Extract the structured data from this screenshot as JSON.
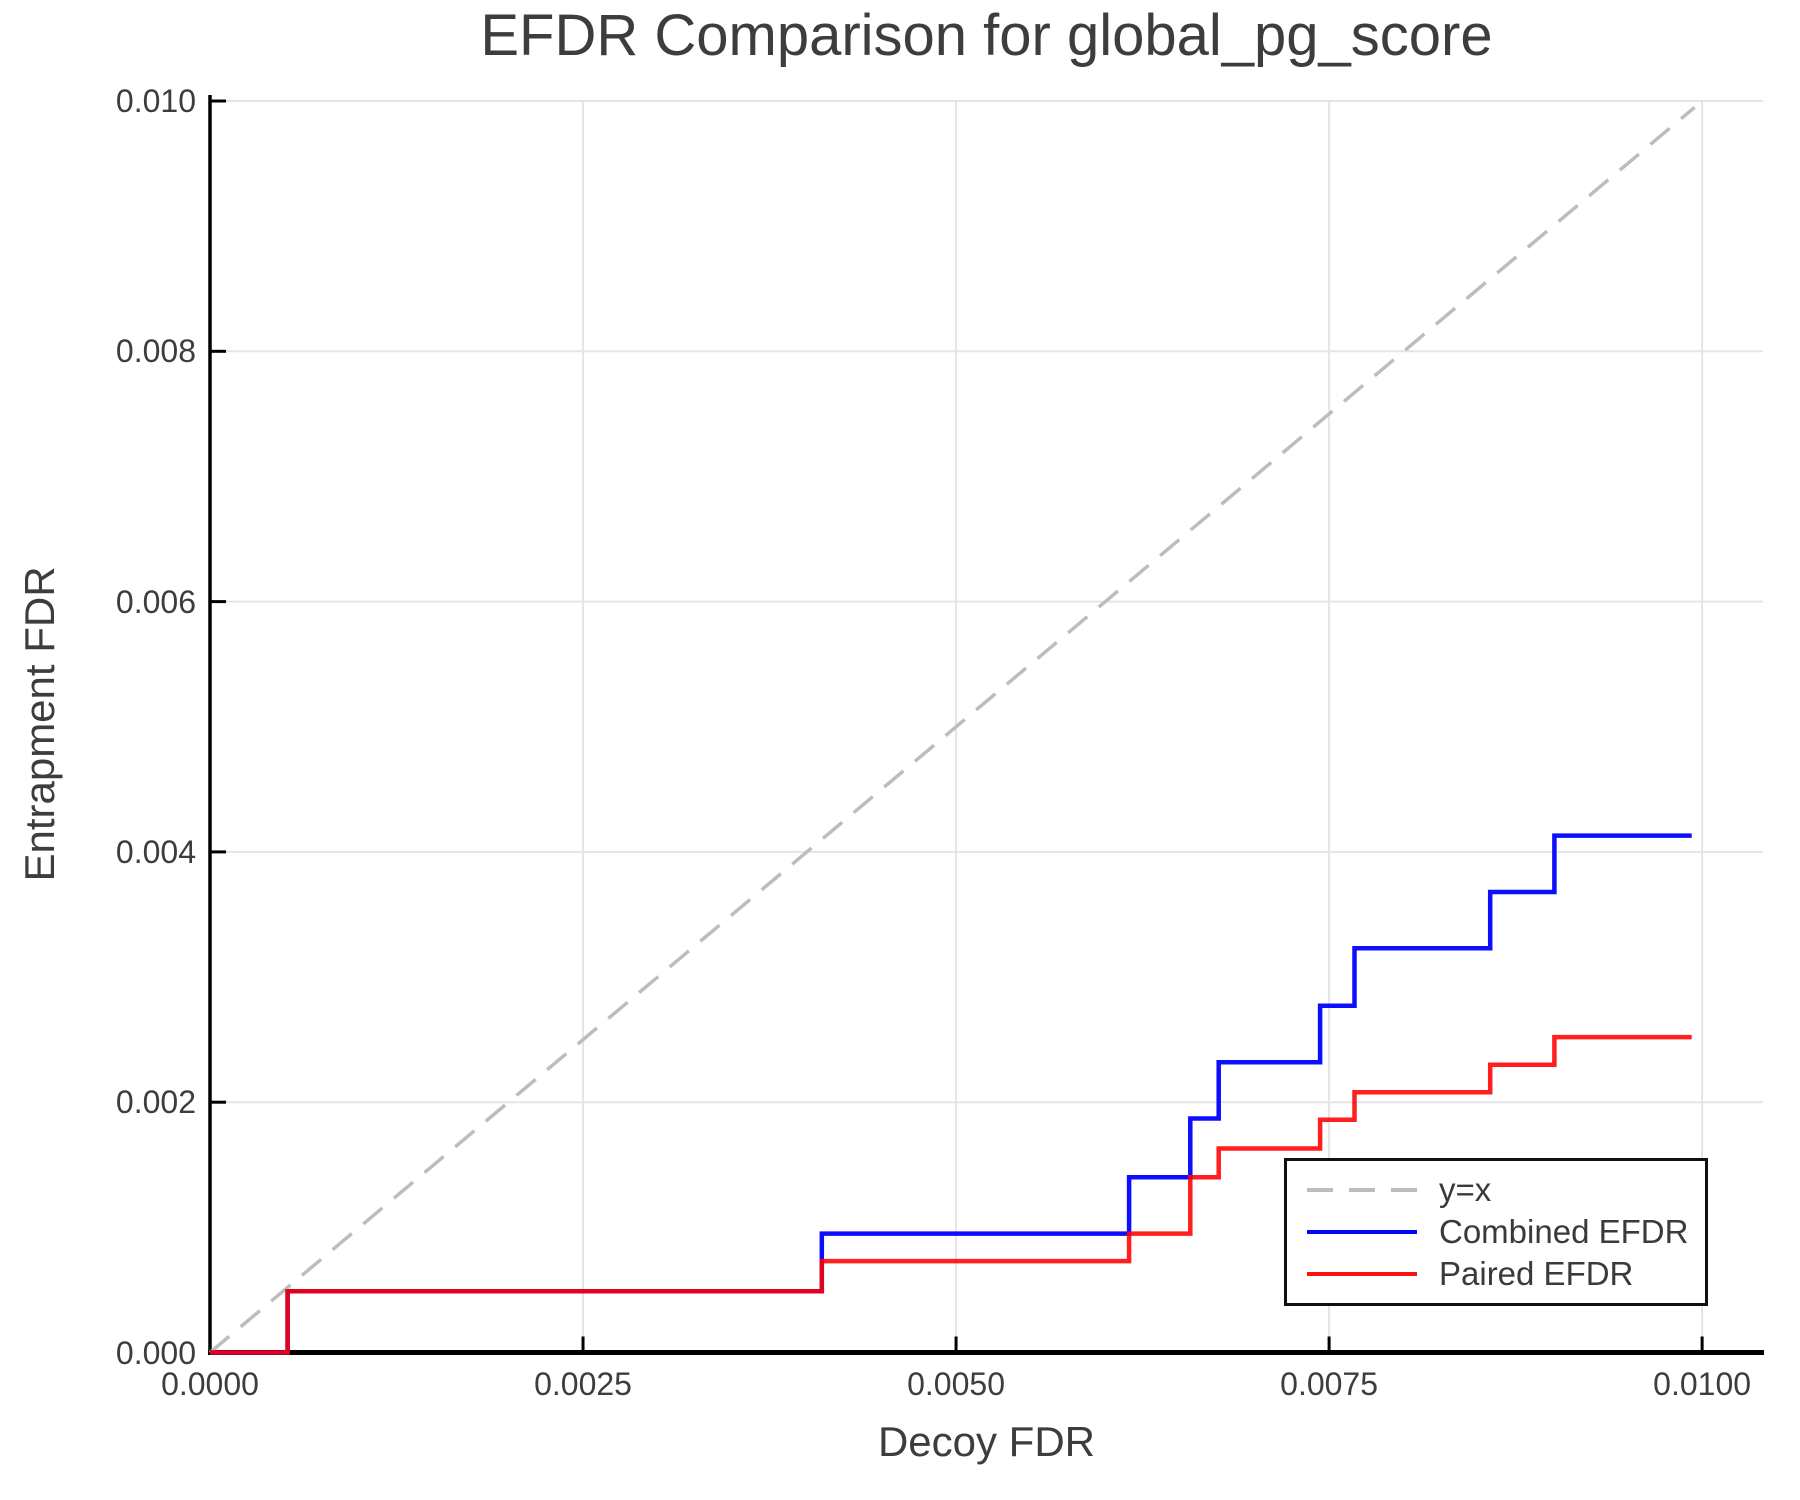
{
  "title": "EFDR Comparison for global_pg_score",
  "axes": {
    "xlabel": "Decoy FDR",
    "ylabel": "Entrapment FDR",
    "x_tick_labels": [
      "0.0000",
      "0.0025",
      "0.0050",
      "0.0075",
      "0.0100"
    ],
    "x_tick_values": [
      0,
      0.0025,
      0.005,
      0.0075,
      0.01
    ],
    "y_tick_labels": [
      "0.000",
      "0.002",
      "0.004",
      "0.006",
      "0.008",
      "0.010"
    ],
    "y_tick_values": [
      0,
      0.002,
      0.004,
      0.006,
      0.008,
      0.01
    ],
    "grid_color": "#e5e5e5",
    "spine_color": "#000000"
  },
  "legend": {
    "position": "lower right",
    "items": [
      {
        "label": "y=x",
        "color": "#bdbdbd",
        "style": "dashed"
      },
      {
        "label": "Combined EFDR",
        "color": "#0000ff",
        "style": "solid"
      },
      {
        "label": "Paired EFDR",
        "color": "#ff0000",
        "style": "solid"
      }
    ]
  },
  "chart_data": {
    "type": "line",
    "title": "EFDR Comparison for global_pg_score",
    "xlabel": "Decoy FDR",
    "ylabel": "Entrapment FDR",
    "xlim": [
      0,
      0.010408
    ],
    "ylim": [
      0,
      0.010044
    ],
    "grid": true,
    "legend_position": "lower right",
    "series": [
      {
        "name": "y=x",
        "style": "dashed",
        "color": "#bdbdbd",
        "points": [
          [
            0,
            0
          ],
          [
            0.00995,
            0.00995
          ]
        ]
      },
      {
        "name": "Combined EFDR",
        "style": "step",
        "color": "#0000ff",
        "points": [
          [
            0,
            0
          ],
          [
            0.00052,
            0
          ],
          [
            0.00052,
            0.00049
          ],
          [
            0.0041,
            0.00049
          ],
          [
            0.0041,
            0.00095
          ],
          [
            0.00616,
            0.00095
          ],
          [
            0.00616,
            0.0014
          ],
          [
            0.00657,
            0.0014
          ],
          [
            0.00657,
            0.00187
          ],
          [
            0.00676,
            0.00187
          ],
          [
            0.00676,
            0.00232
          ],
          [
            0.00744,
            0.00232
          ],
          [
            0.00744,
            0.00277
          ],
          [
            0.00767,
            0.00277
          ],
          [
            0.00767,
            0.00323
          ],
          [
            0.00858,
            0.00323
          ],
          [
            0.00858,
            0.00368
          ],
          [
            0.00901,
            0.00368
          ],
          [
            0.00901,
            0.00413
          ],
          [
            0.00993,
            0.00413
          ]
        ]
      },
      {
        "name": "Paired EFDR",
        "style": "step",
        "color": "#ff0000",
        "points": [
          [
            0,
            0
          ],
          [
            0.00052,
            0
          ],
          [
            0.00052,
            0.00049
          ],
          [
            0.0041,
            0.00049
          ],
          [
            0.0041,
            0.00073
          ],
          [
            0.00616,
            0.00073
          ],
          [
            0.00616,
            0.00095
          ],
          [
            0.00657,
            0.00095
          ],
          [
            0.00657,
            0.0014
          ],
          [
            0.00676,
            0.0014
          ],
          [
            0.00676,
            0.00163
          ],
          [
            0.00744,
            0.00163
          ],
          [
            0.00744,
            0.00186
          ],
          [
            0.00767,
            0.00186
          ],
          [
            0.00767,
            0.00208
          ],
          [
            0.00858,
            0.00208
          ],
          [
            0.00858,
            0.0023
          ],
          [
            0.00901,
            0.0023
          ],
          [
            0.00901,
            0.00252
          ],
          [
            0.00993,
            0.00252
          ]
        ]
      }
    ]
  }
}
